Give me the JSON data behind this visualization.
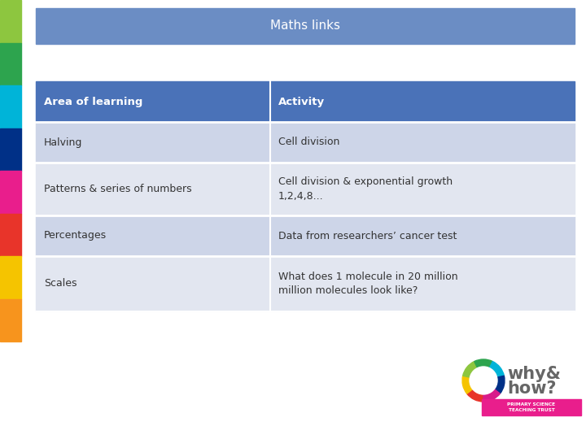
{
  "title": "Maths links",
  "title_bg": "#6b8dc4",
  "title_color": "#ffffff",
  "header_bg": "#4a72b8",
  "header_color": "#ffffff",
  "row_odd_bg": "#cdd5e8",
  "row_even_bg": "#e2e6f0",
  "col1_header": "Area of learning",
  "col2_header": "Activity",
  "rows": [
    [
      "Halving",
      "Cell division"
    ],
    [
      "Patterns & series of numbers",
      "Cell division & exponential growth\n1,2,4,8..."
    ],
    [
      "Percentages",
      "Data from researchers’ cancer test"
    ],
    [
      "Scales",
      "What does 1 molecule in 20 million\nmillion molecules look like?"
    ]
  ],
  "left_bar_colors": [
    "#8dc63f",
    "#2da44e",
    "#00b4d8",
    "#003087",
    "#e91e8c",
    "#e8342a",
    "#f5c400",
    "#f7941d"
  ],
  "background_color": "#ffffff",
  "font_color": "#333333",
  "ring_colors": [
    "#e8342a",
    "#f5c400",
    "#8dc63f",
    "#2da44e",
    "#00b4d8",
    "#003087",
    "#d81b8a"
  ],
  "logo_text1": "why&",
  "logo_text2": "how?",
  "logo_banner": "PRIMARY SCIENCE\nTEACHING TRUST",
  "logo_banner_color": "#e91e8c"
}
